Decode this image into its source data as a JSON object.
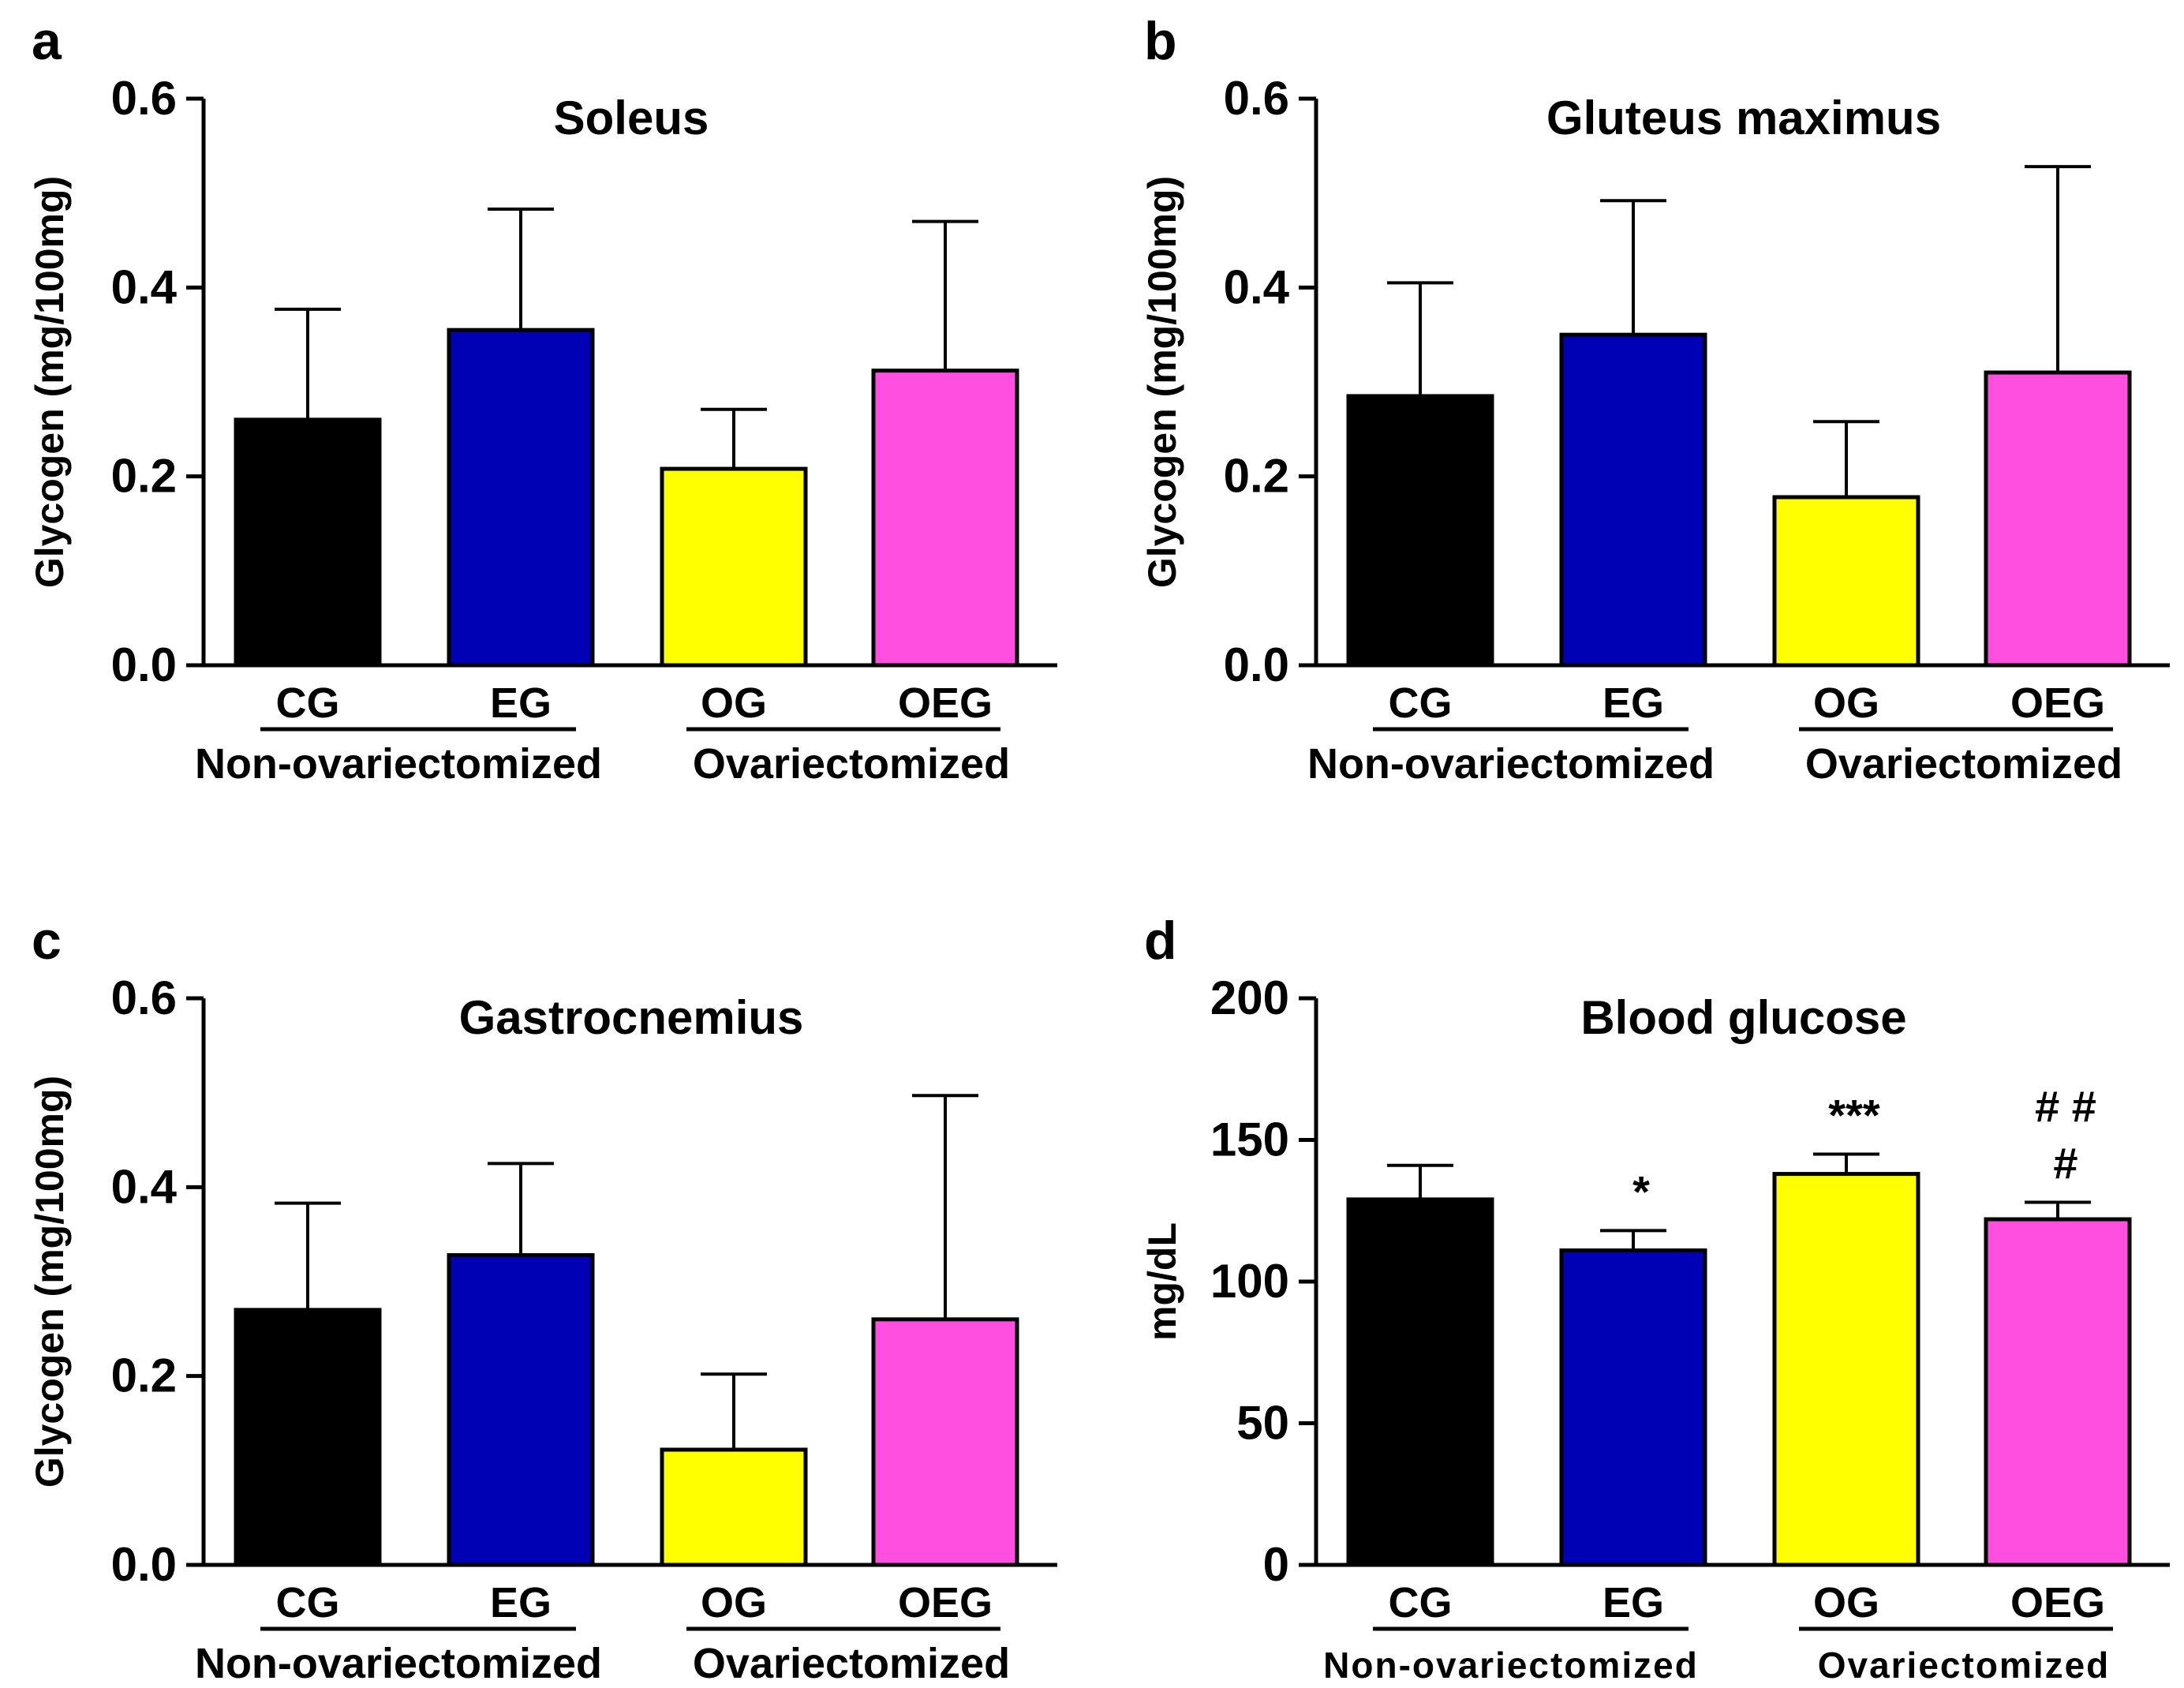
{
  "colors": {
    "CG": "#000000",
    "EG": "#0000b4",
    "OG": "#ffff00",
    "OEG": "#ff4fe0",
    "axis": "#000000"
  },
  "chart_data": [
    {
      "panel": "a",
      "type": "bar",
      "title": "Soleus",
      "ylabel": "Glycogen (mg/100mg)",
      "ylim": [
        0,
        0.6
      ],
      "yticks": [
        "0.0",
        "0.2",
        "0.4",
        "0.6"
      ],
      "ytick_values": [
        0,
        0.2,
        0.4,
        0.6
      ],
      "categories": [
        "CG",
        "EG",
        "OG",
        "OEG"
      ],
      "values": [
        0.26,
        0.355,
        0.208,
        0.312
      ],
      "errors": [
        0.117,
        0.128,
        0.063,
        0.158
      ],
      "groups": [
        "Non-ovariectomized",
        "Ovariectomized"
      ],
      "annotations": [
        "",
        "",
        "",
        ""
      ]
    },
    {
      "panel": "b",
      "type": "bar",
      "title": "Gluteus maximus",
      "ylabel": "Glycogen (mg/100mg)",
      "ylim": [
        0,
        0.6
      ],
      "yticks": [
        "0.0",
        "0.2",
        "0.4",
        "0.6"
      ],
      "ytick_values": [
        0,
        0.2,
        0.4,
        0.6
      ],
      "categories": [
        "CG",
        "EG",
        "OG",
        "OEG"
      ],
      "values": [
        0.285,
        0.35,
        0.178,
        0.31
      ],
      "errors": [
        0.12,
        0.142,
        0.08,
        0.218
      ],
      "groups": [
        "Non-ovariectomized",
        "Ovariectomized"
      ],
      "annotations": [
        "",
        "",
        "",
        ""
      ]
    },
    {
      "panel": "c",
      "type": "bar",
      "title": "Gastrocnemius",
      "ylabel": "Glycogen (mg/100mg)",
      "ylim": [
        0,
        0.6
      ],
      "yticks": [
        "0.0",
        "0.2",
        "0.4",
        "0.6"
      ],
      "ytick_values": [
        0,
        0.2,
        0.4,
        0.6
      ],
      "categories": [
        "CG",
        "EG",
        "OG",
        "OEG"
      ],
      "values": [
        0.27,
        0.328,
        0.122,
        0.26
      ],
      "errors": [
        0.113,
        0.097,
        0.08,
        0.237
      ],
      "groups": [
        "Non-ovariectomized",
        "Ovariectomized"
      ],
      "annotations": [
        "",
        "",
        "",
        ""
      ]
    },
    {
      "panel": "d",
      "type": "bar",
      "title": "Blood glucose",
      "ylabel": "mg/dL",
      "ylim": [
        0,
        200
      ],
      "yticks": [
        "0",
        "50",
        "100",
        "150",
        "200"
      ],
      "ytick_values": [
        0,
        50,
        100,
        150,
        200
      ],
      "categories": [
        "CG",
        "EG",
        "OG",
        "OEG"
      ],
      "values": [
        129,
        111,
        138,
        122
      ],
      "errors": [
        12,
        7,
        7,
        6
      ],
      "groups": [
        "Non-ovariectomized",
        "Ovariectomized"
      ],
      "annotations": [
        "",
        "*",
        "***",
        "# #\n#"
      ]
    }
  ]
}
